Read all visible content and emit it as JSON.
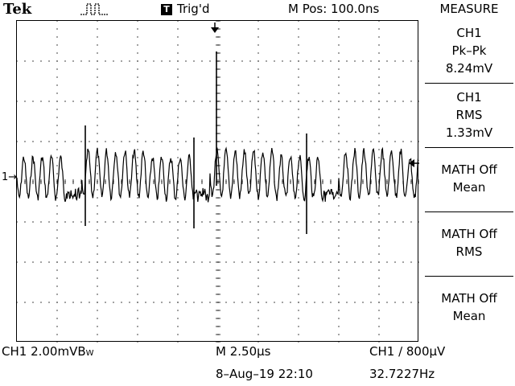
{
  "brand": "Tek",
  "acquire_icon": "pulse-icon",
  "trigger": {
    "badge": "T",
    "status": "Trig'd"
  },
  "main_position": "M Pos: 100.0ns",
  "menu": {
    "title": "MEASURE",
    "items": [
      {
        "line1": "CH1",
        "line2": "Pk–Pk",
        "line3": "8.24mV"
      },
      {
        "line1": "CH1",
        "line2": "RMS",
        "line3": "1.33mV"
      },
      {
        "line1": "MATH Off",
        "line2": "Mean",
        "line3": ""
      },
      {
        "line1": "MATH Off",
        "line2": "RMS",
        "line3": ""
      },
      {
        "line1": "MATH Off",
        "line2": "Mean",
        "line3": ""
      }
    ]
  },
  "channel_marker": "1→",
  "bottom": {
    "ch_scale": "CH1  2.00mVB",
    "bw_suffix": "W",
    "timebase": "M 2.50µs",
    "trigger_info": "CH1 ∕ 800µV",
    "datetime": "8–Aug–19 22:10",
    "frequency": "32.7227Hz"
  },
  "colors": {
    "trace": "#000000",
    "grid": "#000000",
    "background": "#ffffff"
  }
}
